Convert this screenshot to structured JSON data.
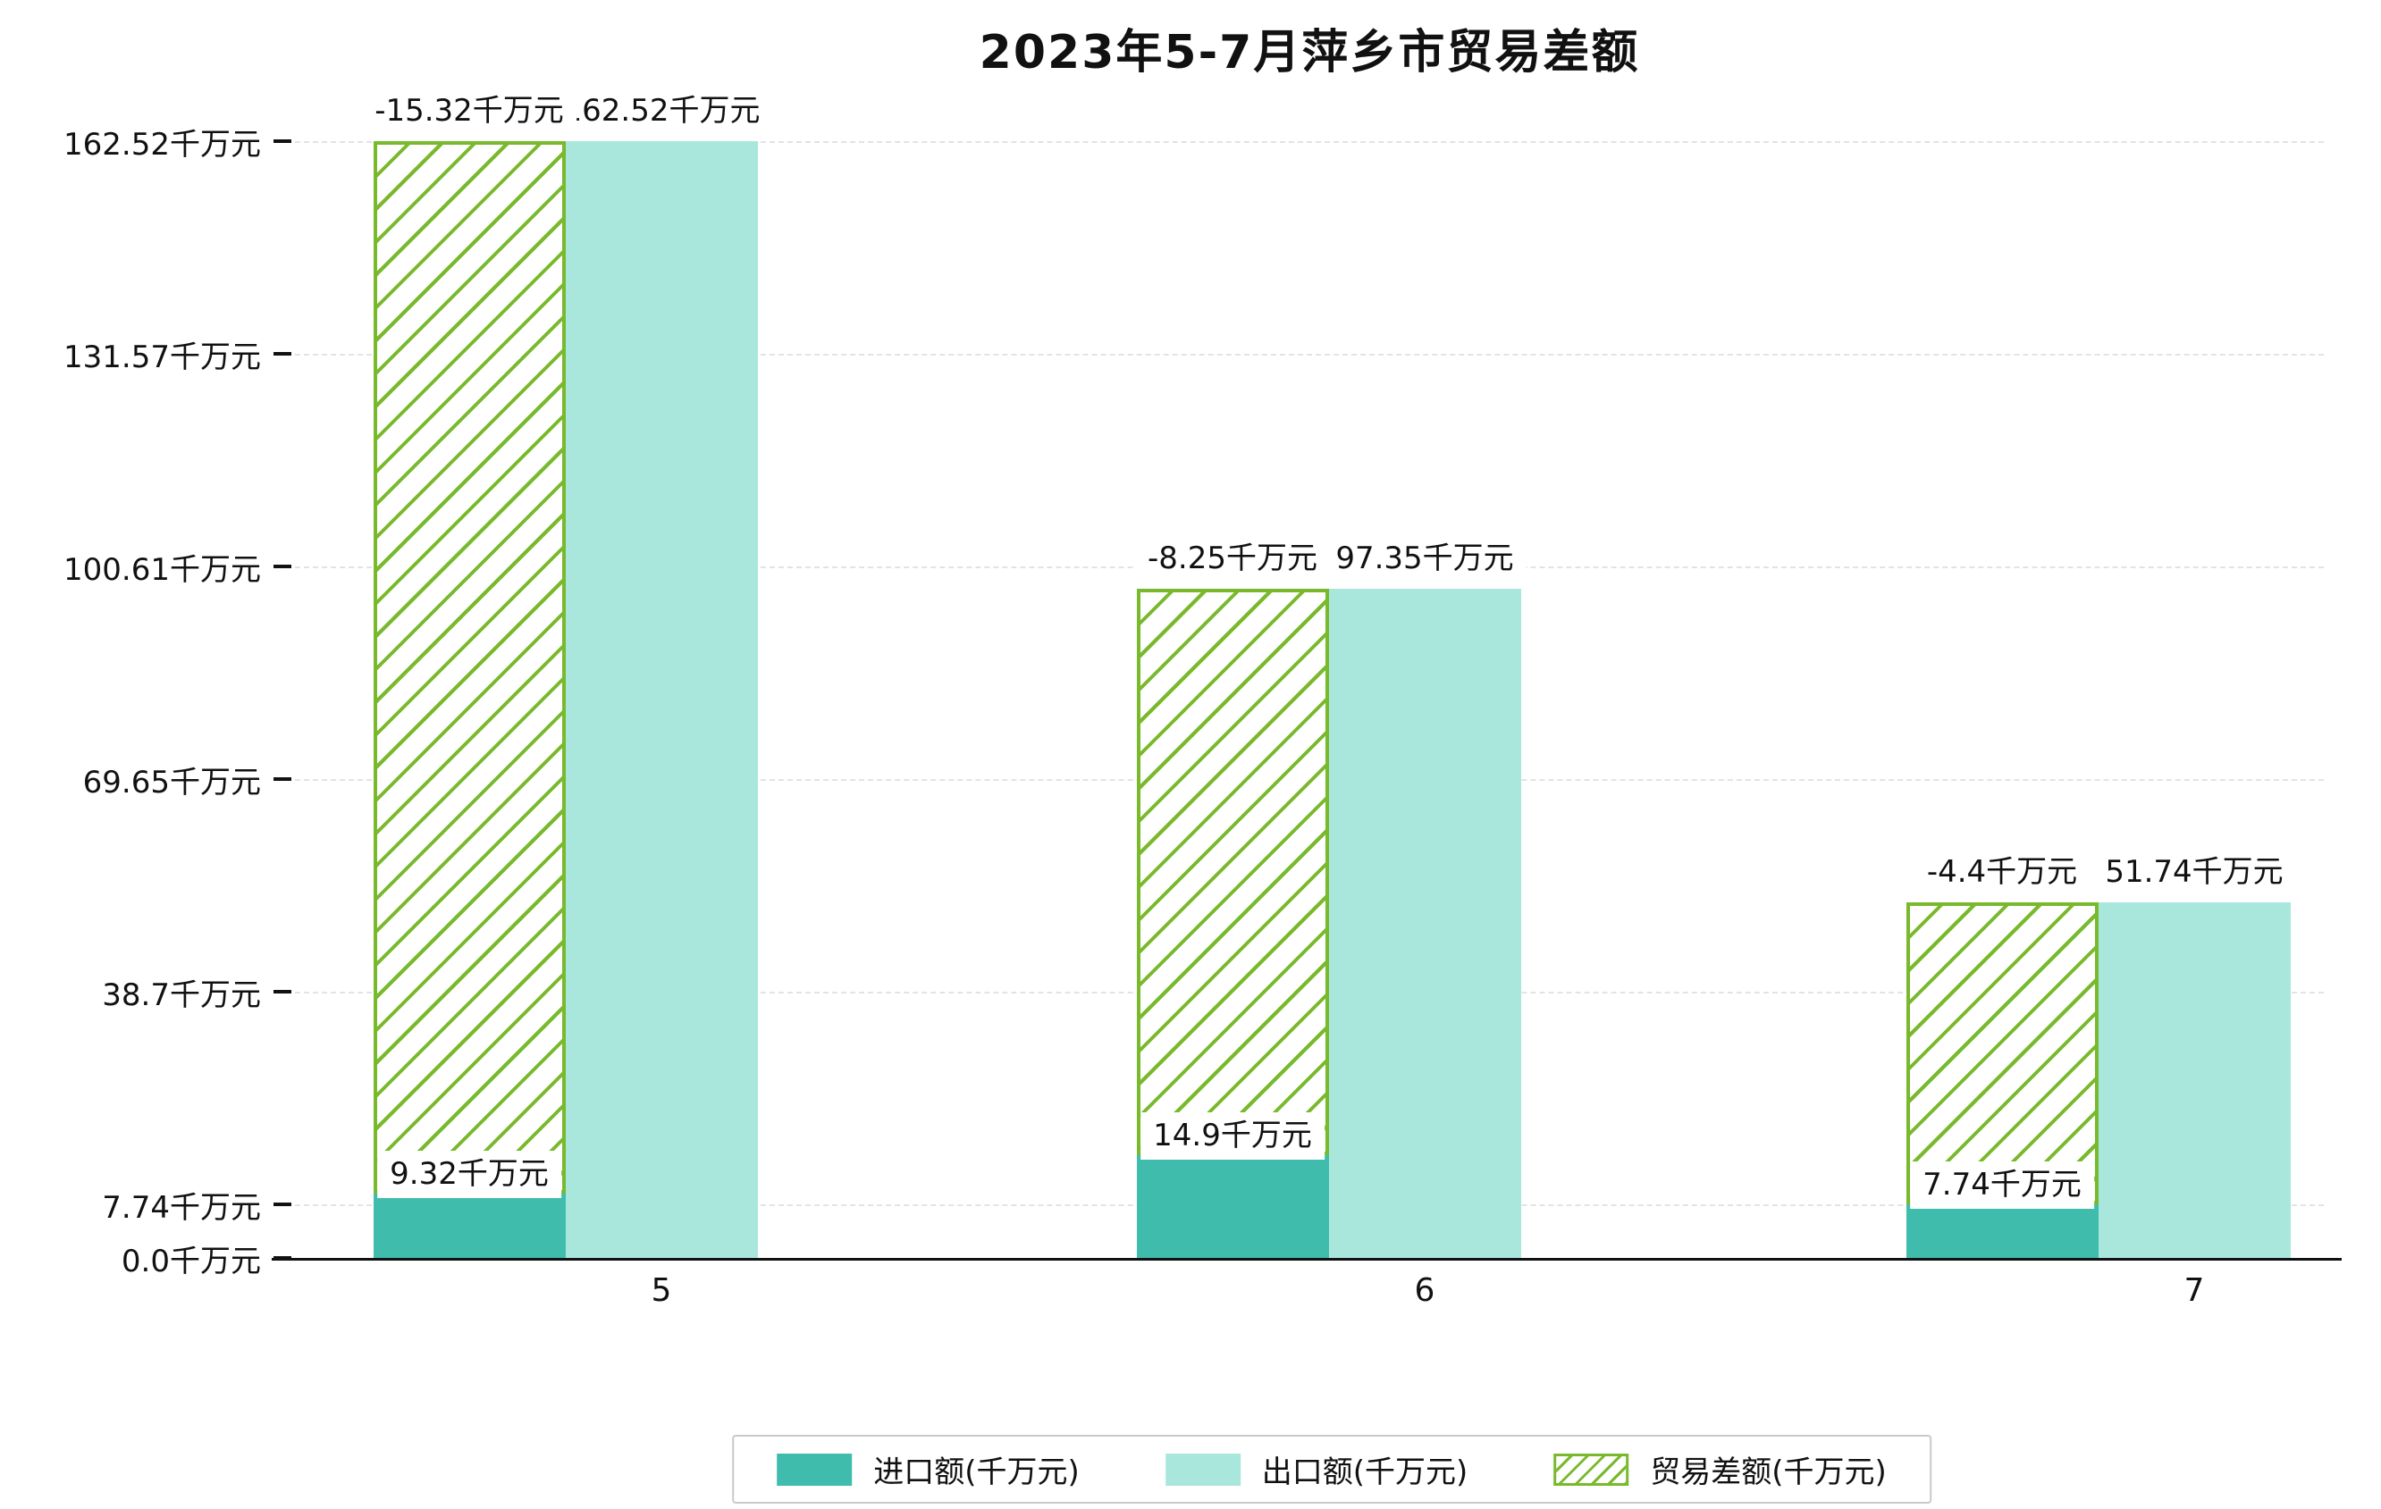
{
  "chart_data": {
    "type": "bar",
    "title": "2023年5-7月萍乡市贸易差额",
    "categories": [
      "5",
      "6",
      "7"
    ],
    "series": [
      {
        "name": "进口额(千万元)",
        "key": "import",
        "values": [
          9.32,
          14.9,
          7.74
        ],
        "labels": [
          "9.32千万元",
          "14.9千万元",
          "7.74千万元"
        ],
        "color": "#3fbcab",
        "style": "solid"
      },
      {
        "name": "出口额(千万元)",
        "key": "export",
        "values": [
          162.52,
          97.35,
          51.74
        ],
        "labels": [
          "162.52千万元",
          "97.35千万元",
          "51.74千万元"
        ],
        "color": "#a9e7dd",
        "style": "solid"
      },
      {
        "name": "贸易差额(千万元)",
        "key": "balance",
        "values": [
          -15.32,
          -8.25,
          -4.4
        ],
        "labels": [
          "-15.32千万元",
          "-8.25千万元",
          "-4.4千万元"
        ],
        "color": "#79b92c",
        "style": "hatched"
      }
    ],
    "unit": "千万元",
    "xlabel": "",
    "ylabel": "",
    "ylim": [
      0,
      162.52
    ],
    "y_ticks": [
      0.0,
      7.74,
      38.7,
      69.65,
      100.61,
      131.57,
      162.52
    ],
    "y_tick_labels": [
      "0.0千万元",
      "7.74千万元",
      "38.7千万元",
      "69.65千万元",
      "100.61千万元",
      "131.57千万元",
      "162.52千万元"
    ],
    "grid": true,
    "legend_position": "bottom"
  }
}
